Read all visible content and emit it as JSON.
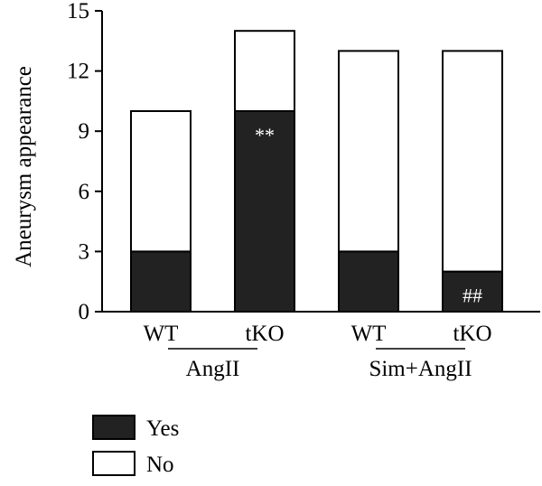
{
  "chart_data": {
    "type": "bar",
    "stacked": true,
    "ylabel": "Aneurysm appearance",
    "xlabel": "",
    "title": "",
    "ylim": [
      0,
      15
    ],
    "yticks": [
      "0",
      "3",
      "6",
      "9",
      "12",
      "15"
    ],
    "grid": false,
    "categories": [
      "WT",
      "tKO",
      "WT",
      "tKO"
    ],
    "groups": [
      {
        "label": "AngII",
        "categories": [
          0,
          1
        ]
      },
      {
        "label": "Sim+AngII",
        "categories": [
          2,
          3
        ]
      }
    ],
    "series": [
      {
        "name": "Yes",
        "values": [
          3,
          10,
          3,
          2
        ],
        "color": "#222222"
      },
      {
        "name": "No",
        "values": [
          7,
          4,
          10,
          11
        ],
        "color": "#ffffff"
      }
    ],
    "annotations": [
      {
        "category": 1,
        "series": "Yes",
        "text": "**"
      },
      {
        "category": 3,
        "series": "Yes",
        "text": "##"
      }
    ],
    "legend": {
      "placement": "bottom-left",
      "entries": [
        "Yes",
        "No"
      ]
    }
  }
}
